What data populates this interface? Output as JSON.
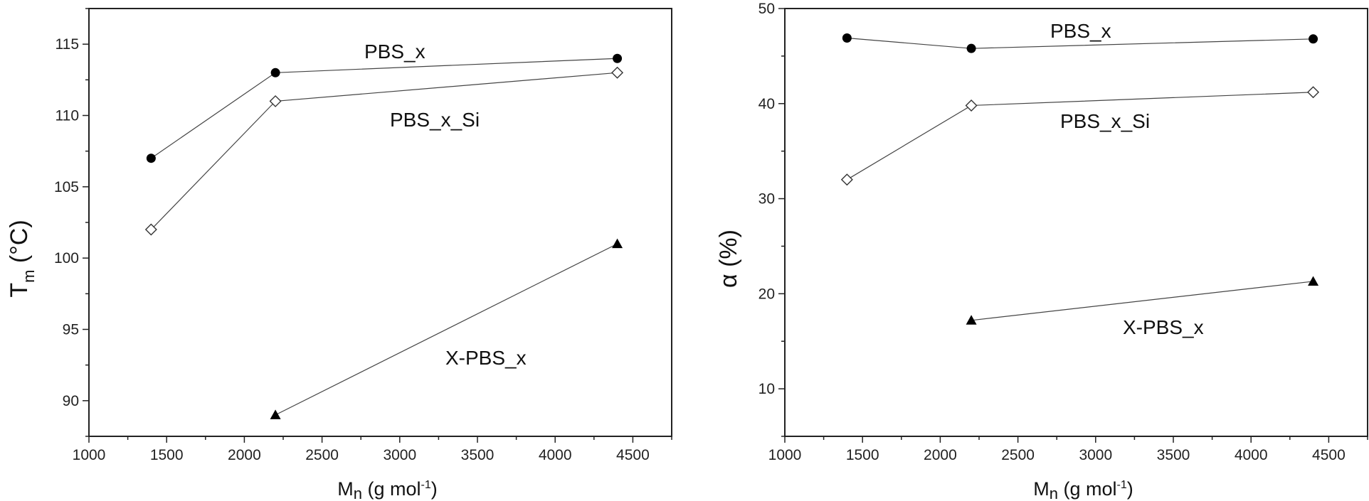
{
  "chart_data": [
    {
      "type": "line",
      "xlim": [
        1000,
        4750
      ],
      "ylim": [
        87.5,
        117.5
      ],
      "xticks": [
        1000,
        1500,
        2000,
        2500,
        3000,
        3500,
        4000,
        4500
      ],
      "yticks": [
        90,
        95,
        100,
        105,
        110,
        115
      ],
      "xlabel": {
        "main": "M",
        "sub": "n",
        "rest": " (g mol",
        "sup": "-1",
        "close": ")"
      },
      "ylabel": {
        "main": "T",
        "sub": "m",
        "rest": " (°C)"
      },
      "series": [
        {
          "name": "PBS_x",
          "marker": "circle-filled",
          "x": [
            1400,
            2200,
            4400
          ],
          "y": [
            107,
            113,
            114
          ]
        },
        {
          "name": "PBS_x_Si",
          "marker": "diamond-open",
          "x": [
            1400,
            2200,
            4400
          ],
          "y": [
            102,
            111,
            113
          ]
        },
        {
          "name": "X-PBS_x",
          "marker": "triangle-filled",
          "x": [
            2200,
            4400
          ],
          "y": [
            89,
            101
          ]
        }
      ]
    },
    {
      "type": "line",
      "xlim": [
        1000,
        4750
      ],
      "ylim": [
        5,
        50
      ],
      "xticks": [
        1000,
        1500,
        2000,
        2500,
        3000,
        3500,
        4000,
        4500
      ],
      "yticks": [
        10,
        20,
        30,
        40,
        50
      ],
      "xlabel": {
        "main": "M",
        "sub": "n",
        "rest": " (g mol",
        "sup": "-1",
        "close": ")"
      },
      "ylabel": {
        "main": "α (%)"
      },
      "series": [
        {
          "name": "PBS_x",
          "marker": "circle-filled",
          "x": [
            1400,
            2200,
            4400
          ],
          "y": [
            46.9,
            45.8,
            46.8
          ]
        },
        {
          "name": "PBS_x_Si",
          "marker": "diamond-open",
          "x": [
            1400,
            2200,
            4400
          ],
          "y": [
            32,
            39.8,
            41.2
          ]
        },
        {
          "name": "X-PBS_x",
          "marker": "triangle-filled",
          "x": [
            2200,
            4400
          ],
          "y": [
            17.2,
            21.3
          ]
        }
      ]
    }
  ]
}
